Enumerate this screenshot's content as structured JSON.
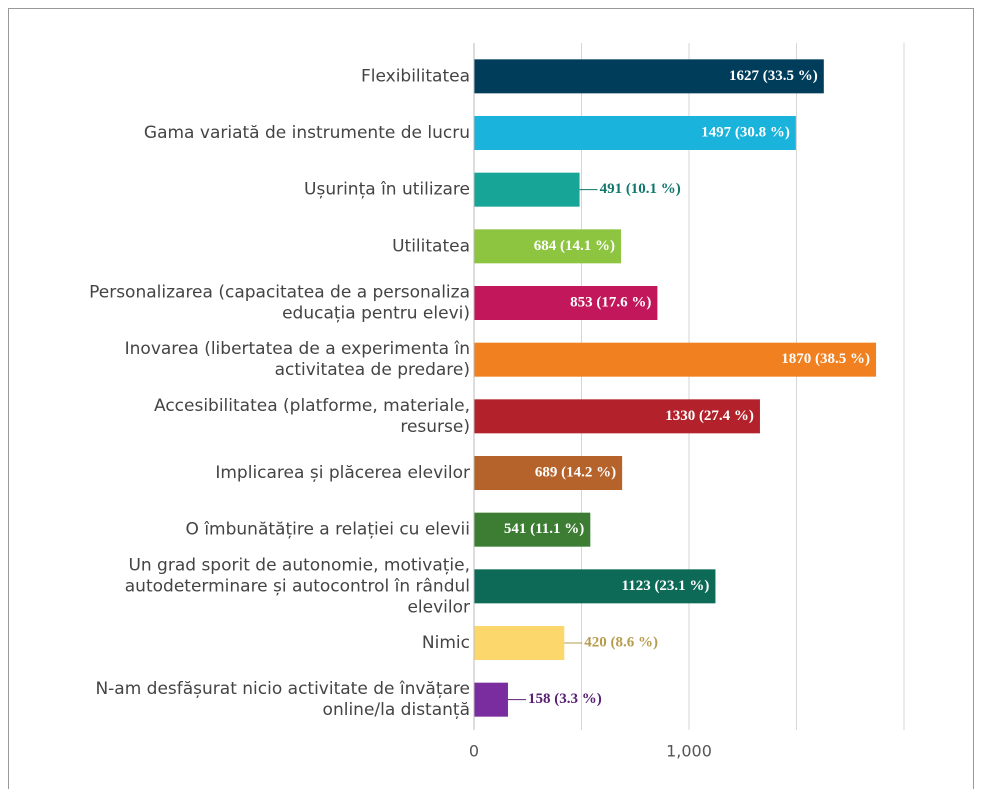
{
  "chart_data": {
    "type": "barh",
    "categories": [
      "Flexibilitatea",
      "Gama variată de instrumente de lucru",
      "Ușurința în utilizare",
      "Utilitatea",
      "Personalizarea (capacitatea de a personaliza educația pentru elevi)",
      "Inovarea (libertatea de a experimenta în activitatea de predare)",
      "Accesibilitatea (platforme, materiale, resurse)",
      "Implicarea și plăcerea elevilor",
      "O îmbunătățire a relației cu elevii",
      "Un grad sporit de autonomie, motivație, autodeterminare și autocontrol în rândul elevilor",
      "Nimic",
      "N-am desfășurat nicio activitate de învățare online/la distanță"
    ],
    "values": [
      1627,
      1497,
      491,
      684,
      853,
      1870,
      1330,
      689,
      541,
      1123,
      420,
      158
    ],
    "value_labels": [
      "1627 (33.5 %)",
      "1497 (30.8 %)",
      "491 (10.1 %)",
      "684 (14.1 %)",
      "853 (17.6 %)",
      "1870 (38.5 %)",
      "1330 (27.4 %)",
      "689 (14.2 %)",
      "541 (11.1 %)",
      "1123 (23.1 %)",
      "420 (8.6 %)",
      "158 (3.3 %)"
    ],
    "colors": [
      "#003d5b",
      "#19b3db",
      "#17a597",
      "#8dc540",
      "#c2185b",
      "#f08020",
      "#b3222a",
      "#b5622b",
      "#3c7d33",
      "#0c6a57",
      "#fcd86c",
      "#7a2d9e"
    ],
    "xlim": [
      0,
      2000
    ],
    "xticks": [
      0,
      {
        "value": 1000,
        "label": "1,000"
      }
    ],
    "gridlines": [
      0,
      500,
      1000,
      1500,
      2000
    ],
    "grid": true
  }
}
